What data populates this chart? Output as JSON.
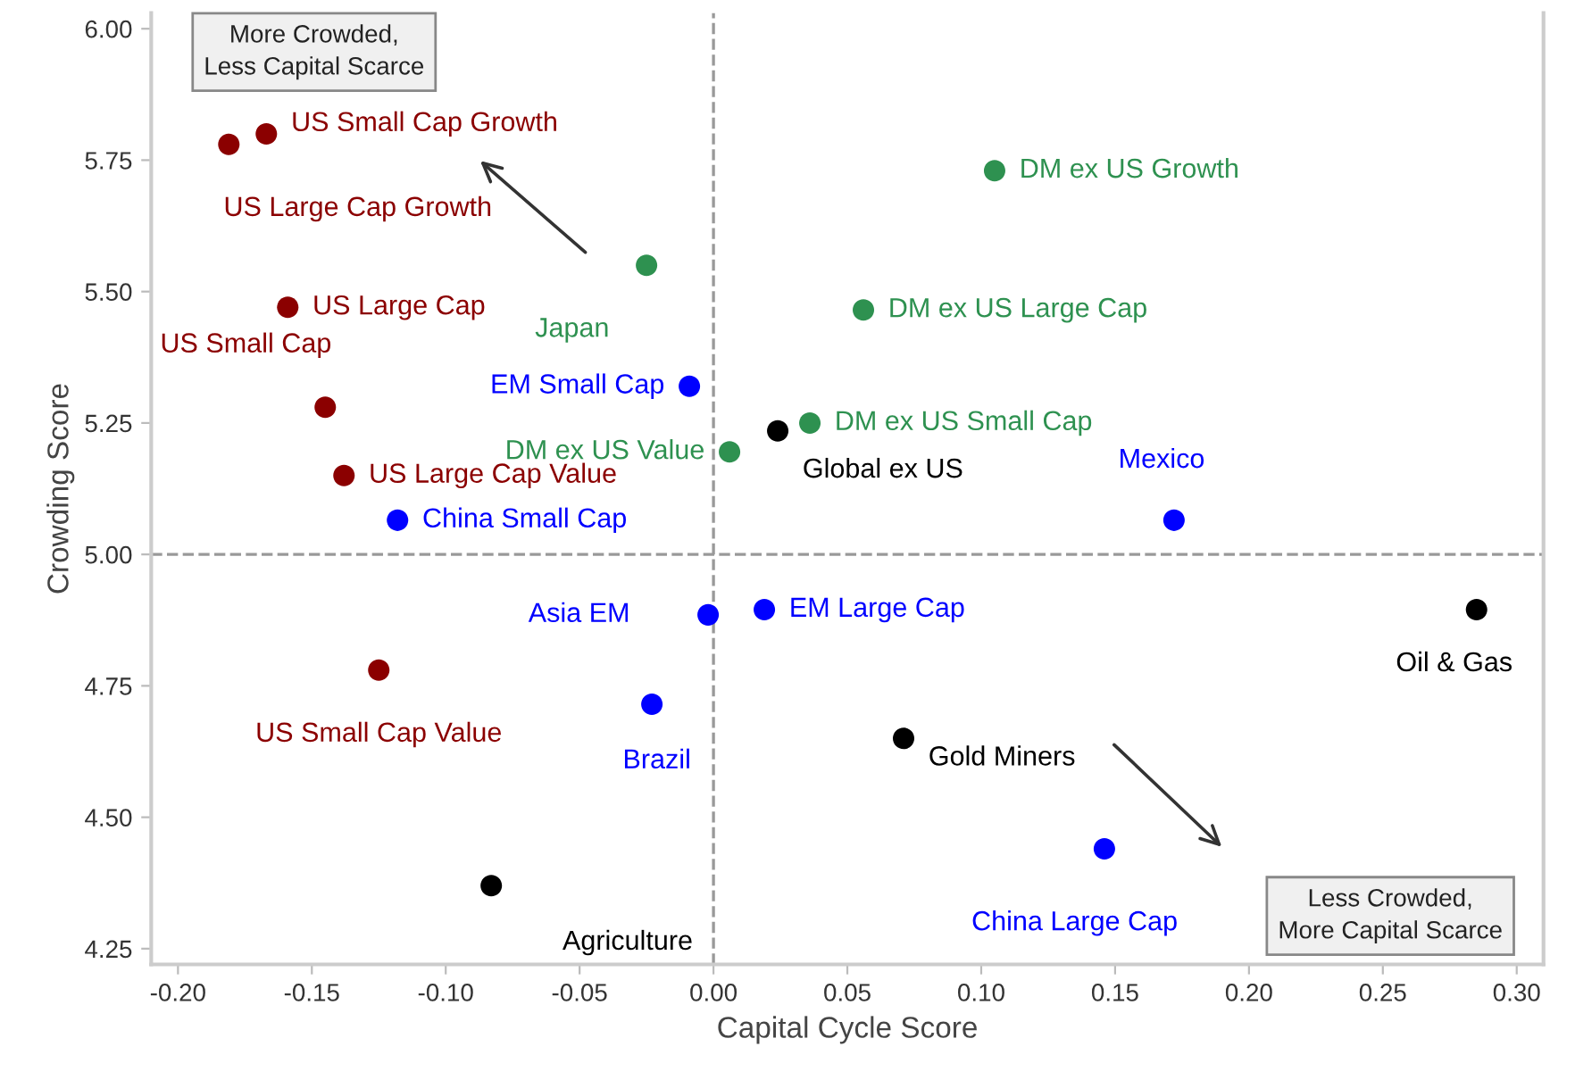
{
  "chart_data": {
    "type": "scatter",
    "xlabel": "Capital Cycle Score",
    "ylabel": "Crowding Score",
    "xlim": [
      -0.21,
      0.31
    ],
    "ylim": [
      4.22,
      6.03
    ],
    "xticks": [
      {
        "value": -0.2,
        "label": "-0.20"
      },
      {
        "value": -0.15,
        "label": "-0.15"
      },
      {
        "value": -0.1,
        "label": "-0.10"
      },
      {
        "value": -0.05,
        "label": "-0.05"
      },
      {
        "value": 0,
        "label": "0.00"
      },
      {
        "value": 0.05,
        "label": "0.05"
      },
      {
        "value": 0.1,
        "label": "0.10"
      },
      {
        "value": 0.15,
        "label": "0.15"
      },
      {
        "value": 0.2,
        "label": "0.20"
      },
      {
        "value": 0.25,
        "label": "0.25"
      },
      {
        "value": 0.3,
        "label": "0.30"
      }
    ],
    "yticks": [
      {
        "value": 4.25,
        "label": "4.25"
      },
      {
        "value": 4.5,
        "label": "4.50"
      },
      {
        "value": 4.75,
        "label": "4.75"
      },
      {
        "value": 5,
        "label": "5.00"
      },
      {
        "value": 5.25,
        "label": "5.25"
      },
      {
        "value": 5.5,
        "label": "5.50"
      },
      {
        "value": 5.75,
        "label": "5.75"
      },
      {
        "value": 6,
        "label": "6.00"
      }
    ],
    "grid": false,
    "marker": "circle",
    "series": [
      {
        "name": "US Large Cap Growth",
        "color": "#8b0000",
        "x": [
          -0.181
        ],
        "values": [
          5.78
        ]
      },
      {
        "name": "US Small Cap Growth",
        "color": "#8b0000",
        "x": [
          -0.167
        ],
        "values": [
          5.8
        ]
      },
      {
        "name": "US Large Cap",
        "color": "#8b0000",
        "x": [
          -0.159
        ],
        "values": [
          5.47
        ]
      },
      {
        "name": "US Small Cap",
        "color": "#8b0000",
        "x": [
          -0.145
        ],
        "values": [
          5.28
        ]
      },
      {
        "name": "US Large Cap Value",
        "color": "#8b0000",
        "x": [
          -0.138
        ],
        "values": [
          5.15
        ]
      },
      {
        "name": "US Small Cap Value",
        "color": "#8b0000",
        "x": [
          -0.125
        ],
        "values": [
          4.78
        ]
      },
      {
        "name": "Japan",
        "color": "#2e9150",
        "x": [
          -0.025
        ],
        "values": [
          5.55
        ]
      },
      {
        "name": "DM ex US Value",
        "color": "#2e9150",
        "x": [
          0.006
        ],
        "values": [
          5.195
        ]
      },
      {
        "name": "DM ex US Small Cap",
        "color": "#2e9150",
        "x": [
          0.036
        ],
        "values": [
          5.25
        ]
      },
      {
        "name": "DM ex US Large Cap",
        "color": "#2e9150",
        "x": [
          0.056
        ],
        "values": [
          5.465
        ]
      },
      {
        "name": "DM ex US Growth",
        "color": "#2e9150",
        "x": [
          0.105
        ],
        "values": [
          5.73
        ]
      },
      {
        "name": "China Small Cap",
        "color": "#0000ff",
        "x": [
          -0.118
        ],
        "values": [
          5.065
        ]
      },
      {
        "name": "EM Small Cap",
        "color": "#0000ff",
        "x": [
          -0.009
        ],
        "values": [
          5.32
        ]
      },
      {
        "name": "Mexico",
        "color": "#0000ff",
        "x": [
          0.172
        ],
        "values": [
          5.065
        ]
      },
      {
        "name": "Asia EM",
        "color": "#0000ff",
        "x": [
          -0.002
        ],
        "values": [
          4.885
        ]
      },
      {
        "name": "EM Large Cap",
        "color": "#0000ff",
        "x": [
          0.019
        ],
        "values": [
          4.895
        ]
      },
      {
        "name": "Brazil",
        "color": "#0000ff",
        "x": [
          -0.023
        ],
        "values": [
          4.715
        ]
      },
      {
        "name": "China Large Cap",
        "color": "#0000ff",
        "x": [
          0.146
        ],
        "values": [
          4.44
        ]
      },
      {
        "name": "Global ex US",
        "color": "#000000",
        "x": [
          0.024
        ],
        "values": [
          5.235
        ]
      },
      {
        "name": "Oil & Gas",
        "color": "#000000",
        "x": [
          0.285
        ],
        "values": [
          4.895
        ]
      },
      {
        "name": "Gold Miners",
        "color": "#000000",
        "x": [
          0.071
        ],
        "values": [
          4.65
        ]
      },
      {
        "name": "Agriculture",
        "color": "#000000",
        "x": [
          -0.083
        ],
        "values": [
          4.37
        ]
      }
    ],
    "ref_lines": [
      {
        "axis": "x",
        "value": 0,
        "color": "#999999",
        "line_style": "dashed"
      },
      {
        "axis": "y",
        "value": 5,
        "color": "#999999",
        "line_style": "dashed"
      }
    ],
    "annotations": [
      "More Crowded,\nLess Capital Scarce",
      "Less Crowded,\nMore Capital Scarce"
    ]
  }
}
